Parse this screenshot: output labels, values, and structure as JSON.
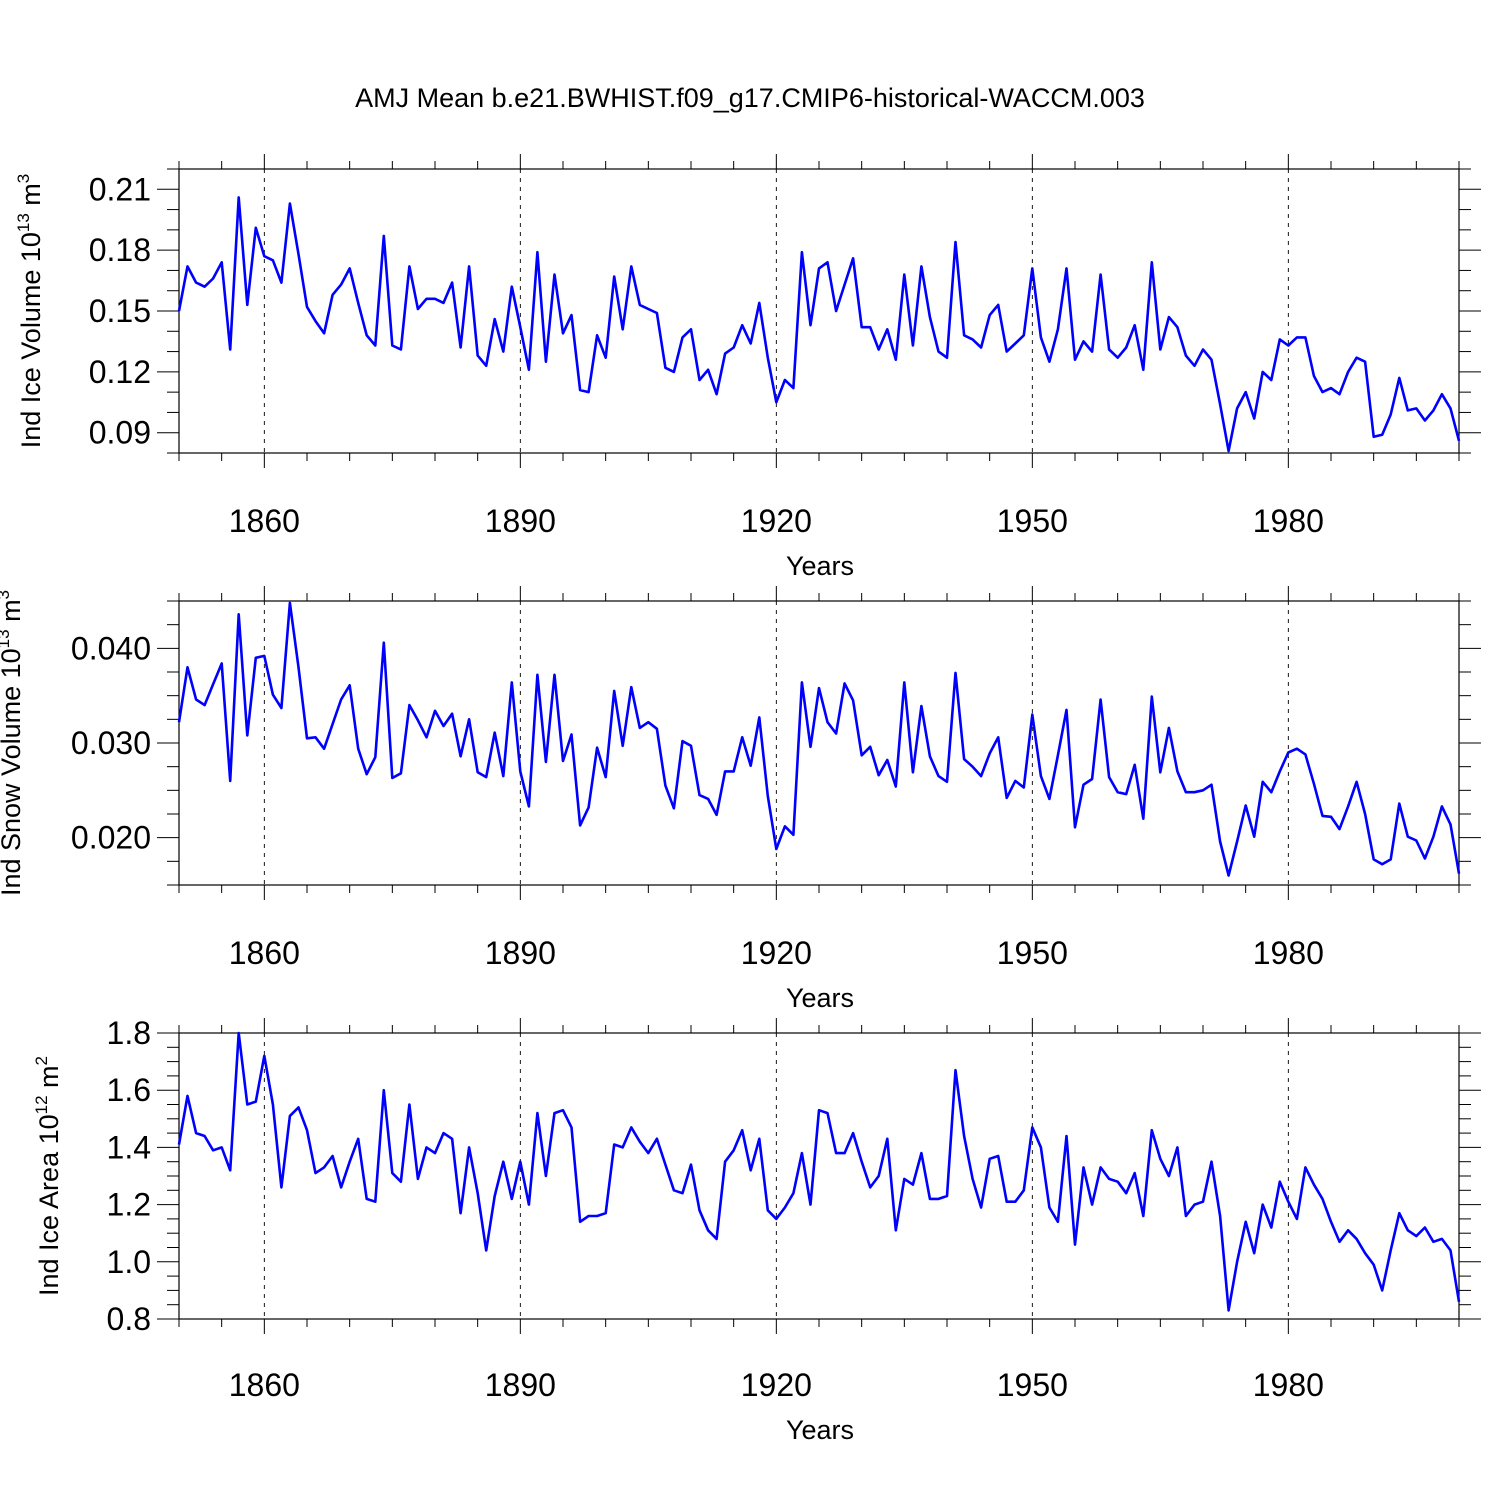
{
  "title": "AMJ Mean b.e21.BWHIST.f09_g17.CMIP6-historical-WACCM.003",
  "line_color": "#0000ff",
  "chart_data": [
    {
      "type": "line",
      "id": "ice-volume",
      "ylabel_main": "Ind Ice Volume 10",
      "ylabel_exp": "13",
      "ylabel_unit": " m",
      "ylabel_unit_exp": "3",
      "xlabel": "Years",
      "xlim": [
        1850,
        2000
      ],
      "ylim": [
        0.08,
        0.22
      ],
      "yticks": [
        0.09,
        0.12,
        0.15,
        0.18,
        0.21
      ],
      "ytick_labels": [
        "0.09",
        "0.12",
        "0.15",
        "0.18",
        "0.21"
      ],
      "yminor_step": 0.01,
      "xticks": [
        1860,
        1890,
        1920,
        1950,
        1980
      ],
      "xtick_labels": [
        "1860",
        "1890",
        "1920",
        "1950",
        "1980"
      ],
      "x_start": 1850,
      "values": [
        0.15,
        0.172,
        0.164,
        0.162,
        0.166,
        0.174,
        0.131,
        0.206,
        0.153,
        0.191,
        0.177,
        0.175,
        0.164,
        0.203,
        0.178,
        0.152,
        0.145,
        0.139,
        0.158,
        0.163,
        0.171,
        0.154,
        0.138,
        0.133,
        0.187,
        0.133,
        0.131,
        0.172,
        0.151,
        0.156,
        0.156,
        0.154,
        0.164,
        0.132,
        0.172,
        0.128,
        0.123,
        0.146,
        0.13,
        0.162,
        0.142,
        0.121,
        0.179,
        0.125,
        0.168,
        0.139,
        0.148,
        0.111,
        0.11,
        0.138,
        0.127,
        0.167,
        0.141,
        0.172,
        0.153,
        0.151,
        0.149,
        0.122,
        0.12,
        0.137,
        0.141,
        0.116,
        0.121,
        0.109,
        0.129,
        0.132,
        0.143,
        0.134,
        0.154,
        0.127,
        0.105,
        0.116,
        0.112,
        0.179,
        0.143,
        0.171,
        0.174,
        0.15,
        0.163,
        0.176,
        0.142,
        0.142,
        0.131,
        0.141,
        0.126,
        0.168,
        0.133,
        0.172,
        0.147,
        0.13,
        0.127,
        0.184,
        0.138,
        0.136,
        0.132,
        0.148,
        0.153,
        0.13,
        0.134,
        0.138,
        0.171,
        0.137,
        0.125,
        0.141,
        0.171,
        0.126,
        0.135,
        0.13,
        0.168,
        0.131,
        0.127,
        0.132,
        0.143,
        0.121,
        0.174,
        0.131,
        0.147,
        0.142,
        0.128,
        0.123,
        0.131,
        0.126,
        0.104,
        0.081,
        0.102,
        0.11,
        0.097,
        0.12,
        0.116,
        0.136,
        0.133,
        0.137,
        0.137,
        0.118,
        0.11,
        0.112,
        0.109,
        0.12,
        0.127,
        0.125,
        0.088,
        0.089,
        0.099,
        0.117,
        0.101,
        0.102,
        0.096,
        0.101,
        0.109,
        0.102,
        0.086
      ]
    },
    {
      "type": "line",
      "id": "snow-volume",
      "ylabel_main": "Ind Snow Volume 10",
      "ylabel_exp": "13",
      "ylabel_unit": " m",
      "ylabel_unit_exp": "3",
      "xlabel": "Years",
      "xlim": [
        1850,
        2000
      ],
      "ylim": [
        0.015,
        0.045
      ],
      "yticks": [
        0.02,
        0.03,
        0.04
      ],
      "ytick_labels": [
        "0.020",
        "0.030",
        "0.040"
      ],
      "yminor_step": 0.0025,
      "xticks": [
        1860,
        1890,
        1920,
        1950,
        1980
      ],
      "xtick_labels": [
        "1860",
        "1890",
        "1920",
        "1950",
        "1980"
      ],
      "x_start": 1850,
      "values": [
        0.0322,
        0.038,
        0.0346,
        0.034,
        0.0362,
        0.0384,
        0.026,
        0.0436,
        0.0308,
        0.039,
        0.0392,
        0.0351,
        0.0337,
        0.0448,
        0.038,
        0.0305,
        0.0306,
        0.0294,
        0.032,
        0.0346,
        0.0361,
        0.0294,
        0.0267,
        0.0285,
        0.0406,
        0.0263,
        0.0268,
        0.034,
        0.0324,
        0.0306,
        0.0334,
        0.0318,
        0.0331,
        0.0286,
        0.0325,
        0.0269,
        0.0264,
        0.0311,
        0.0265,
        0.0364,
        0.027,
        0.0233,
        0.0372,
        0.028,
        0.0372,
        0.0281,
        0.0309,
        0.0213,
        0.0232,
        0.0295,
        0.0264,
        0.0355,
        0.0297,
        0.0359,
        0.0316,
        0.0322,
        0.0315,
        0.0255,
        0.0231,
        0.0302,
        0.0297,
        0.0245,
        0.0241,
        0.0224,
        0.027,
        0.027,
        0.0306,
        0.0276,
        0.0327,
        0.0244,
        0.0188,
        0.0212,
        0.0203,
        0.0364,
        0.0296,
        0.0358,
        0.0322,
        0.031,
        0.0363,
        0.0345,
        0.0287,
        0.0296,
        0.0266,
        0.0282,
        0.0254,
        0.0364,
        0.0269,
        0.0339,
        0.0286,
        0.0265,
        0.0259,
        0.0374,
        0.0283,
        0.0275,
        0.0265,
        0.0289,
        0.0306,
        0.0242,
        0.026,
        0.0253,
        0.033,
        0.0265,
        0.0241,
        0.0287,
        0.0335,
        0.0211,
        0.0256,
        0.0262,
        0.0346,
        0.0264,
        0.0248,
        0.0246,
        0.0277,
        0.022,
        0.0349,
        0.0269,
        0.0316,
        0.027,
        0.0248,
        0.0248,
        0.025,
        0.0256,
        0.0196,
        0.016,
        0.0196,
        0.0234,
        0.0201,
        0.0259,
        0.0248,
        0.027,
        0.029,
        0.0294,
        0.0288,
        0.0257,
        0.0223,
        0.0222,
        0.0209,
        0.0233,
        0.0259,
        0.0225,
        0.0177,
        0.0172,
        0.0177,
        0.0236,
        0.0201,
        0.0197,
        0.0178,
        0.0201,
        0.0233,
        0.0214,
        0.0162
      ]
    },
    {
      "type": "line",
      "id": "ice-area",
      "ylabel_main": "Ind Ice Area 10",
      "ylabel_exp": "12",
      "ylabel_unit": " m",
      "ylabel_unit_exp": "2",
      "xlabel": "Years",
      "xlim": [
        1850,
        2000
      ],
      "ylim": [
        0.8,
        1.8
      ],
      "yticks": [
        0.8,
        1.0,
        1.2,
        1.4,
        1.6,
        1.8
      ],
      "ytick_labels": [
        "0.8",
        "1.0",
        "1.2",
        "1.4",
        "1.6",
        "1.8"
      ],
      "yminor_step": 0.05,
      "xticks": [
        1860,
        1890,
        1920,
        1950,
        1980
      ],
      "xtick_labels": [
        "1860",
        "1890",
        "1920",
        "1950",
        "1980"
      ],
      "x_start": 1850,
      "values": [
        1.41,
        1.58,
        1.45,
        1.44,
        1.39,
        1.4,
        1.32,
        1.8,
        1.55,
        1.56,
        1.72,
        1.55,
        1.26,
        1.51,
        1.54,
        1.46,
        1.31,
        1.33,
        1.37,
        1.26,
        1.35,
        1.43,
        1.22,
        1.21,
        1.6,
        1.31,
        1.28,
        1.55,
        1.29,
        1.4,
        1.38,
        1.45,
        1.43,
        1.17,
        1.4,
        1.24,
        1.04,
        1.23,
        1.35,
        1.22,
        1.35,
        1.2,
        1.52,
        1.3,
        1.52,
        1.53,
        1.47,
        1.14,
        1.16,
        1.16,
        1.17,
        1.41,
        1.4,
        1.47,
        1.42,
        1.38,
        1.43,
        1.34,
        1.25,
        1.24,
        1.34,
        1.18,
        1.11,
        1.08,
        1.35,
        1.39,
        1.46,
        1.32,
        1.43,
        1.18,
        1.15,
        1.19,
        1.24,
        1.38,
        1.2,
        1.53,
        1.52,
        1.38,
        1.38,
        1.45,
        1.35,
        1.26,
        1.3,
        1.43,
        1.11,
        1.29,
        1.27,
        1.38,
        1.22,
        1.22,
        1.23,
        1.67,
        1.44,
        1.29,
        1.19,
        1.36,
        1.37,
        1.21,
        1.21,
        1.25,
        1.47,
        1.4,
        1.19,
        1.14,
        1.44,
        1.06,
        1.33,
        1.2,
        1.33,
        1.29,
        1.28,
        1.24,
        1.31,
        1.16,
        1.46,
        1.36,
        1.3,
        1.4,
        1.16,
        1.2,
        1.21,
        1.35,
        1.16,
        0.83,
        1.0,
        1.14,
        1.03,
        1.2,
        1.12,
        1.28,
        1.21,
        1.15,
        1.33,
        1.27,
        1.22,
        1.14,
        1.07,
        1.11,
        1.08,
        1.03,
        0.99,
        0.9,
        1.04,
        1.17,
        1.11,
        1.09,
        1.12,
        1.07,
        1.08,
        1.04,
        0.86
      ]
    }
  ]
}
